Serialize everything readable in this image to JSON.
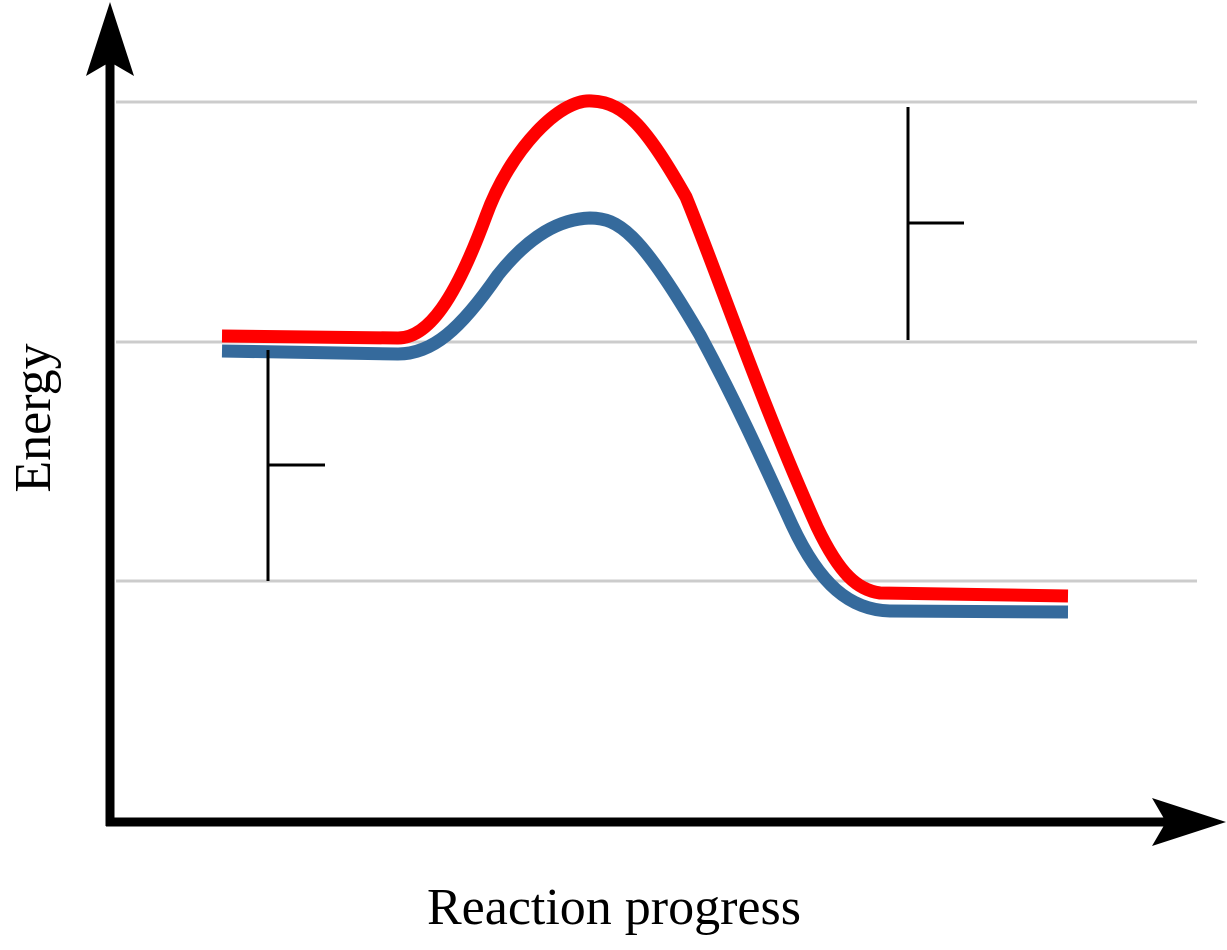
{
  "diagram": {
    "x_axis_label": "Reaction progress",
    "y_axis_label": "Energy",
    "colors": {
      "axes": "#000000",
      "gridlines": "#cccccc",
      "uncatalyzed_curve": "#ff0000",
      "catalyzed_curve": "#356a9c",
      "brackets": "#000000"
    }
  }
}
